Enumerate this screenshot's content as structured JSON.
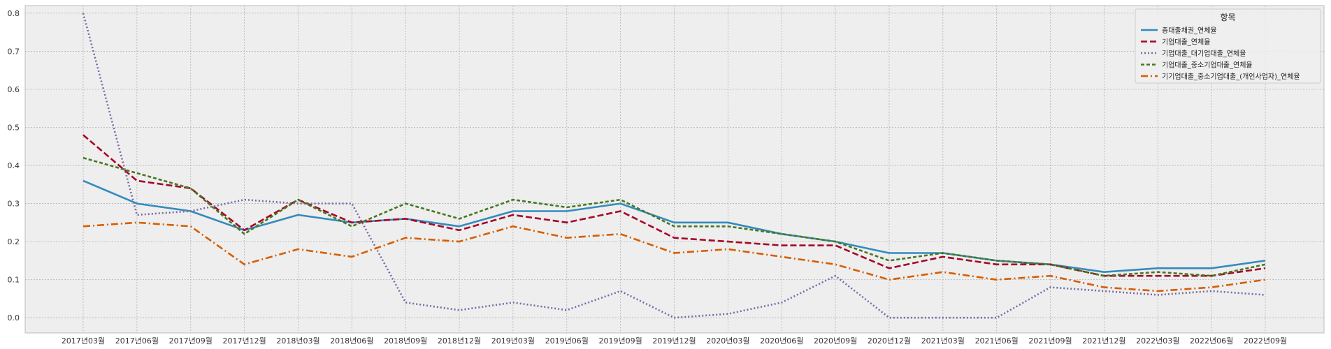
{
  "chart_data": {
    "type": "line",
    "title": "",
    "xlabel": "",
    "ylabel": "",
    "ylim": [
      -0.04,
      0.82
    ],
    "yticks": [
      "0.0",
      "0.1",
      "0.2",
      "0.3",
      "0.4",
      "0.5",
      "0.6",
      "0.7",
      "0.8"
    ],
    "grid": true,
    "legend_position": "top-right",
    "legend_title": "항목",
    "categories": [
      "2017년03월",
      "2017년06월",
      "2017년09월",
      "2017년12월",
      "2018년03월",
      "2018년06월",
      "2018년09월",
      "2018년12월",
      "2019년03월",
      "2019년06월",
      "2019년09월",
      "2019년12월",
      "2020년03월",
      "2020년06월",
      "2020년09월",
      "2020년12월",
      "2021년03월",
      "2021년06월",
      "2021년09월",
      "2021년12월",
      "2022년03월",
      "2022년06월",
      "2022년09월"
    ],
    "series": [
      {
        "name": "총대출채권_연체율",
        "color": "#348ABD",
        "dash": "solid",
        "values": [
          0.36,
          0.3,
          0.28,
          0.23,
          0.27,
          0.25,
          0.26,
          0.24,
          0.28,
          0.28,
          0.3,
          0.25,
          0.25,
          0.22,
          0.2,
          0.17,
          0.17,
          0.15,
          0.14,
          0.12,
          0.13,
          0.13,
          0.15
        ]
      },
      {
        "name": "기업대출_연체율",
        "color": "#A60628",
        "dash": "dashed",
        "values": [
          0.48,
          0.36,
          0.34,
          0.23,
          0.31,
          0.25,
          0.26,
          0.23,
          0.27,
          0.25,
          0.28,
          0.21,
          0.2,
          0.19,
          0.19,
          0.13,
          0.16,
          0.14,
          0.14,
          0.11,
          0.11,
          0.11,
          0.13
        ]
      },
      {
        "name": "기업대출_대기업대출_연체율",
        "color": "#7A68A6",
        "dash": "dotted",
        "values": [
          0.8,
          0.27,
          0.28,
          0.31,
          0.3,
          0.3,
          0.04,
          0.02,
          0.04,
          0.02,
          0.07,
          0.0,
          0.01,
          0.04,
          0.11,
          0.0,
          0.0,
          0.0,
          0.08,
          0.07,
          0.06,
          0.07,
          0.06
        ]
      },
      {
        "name": "기업대출_중소기업대출_연체율",
        "color": "#467821",
        "dash": "dashed-dense",
        "values": [
          0.42,
          0.38,
          0.34,
          0.22,
          0.31,
          0.24,
          0.3,
          0.26,
          0.31,
          0.29,
          0.31,
          0.24,
          0.24,
          0.22,
          0.2,
          0.15,
          0.17,
          0.15,
          0.14,
          0.11,
          0.12,
          0.11,
          0.14
        ]
      },
      {
        "name": "기기업대출_중소기업대출_(개인사업자)_연체율",
        "color": "#D55E00",
        "dash": "dashdot",
        "values": [
          0.24,
          0.25,
          0.24,
          0.14,
          0.18,
          0.16,
          0.21,
          0.2,
          0.24,
          0.21,
          0.22,
          0.17,
          0.18,
          0.16,
          0.14,
          0.1,
          0.12,
          0.1,
          0.11,
          0.08,
          0.07,
          0.08,
          0.1
        ]
      }
    ]
  }
}
